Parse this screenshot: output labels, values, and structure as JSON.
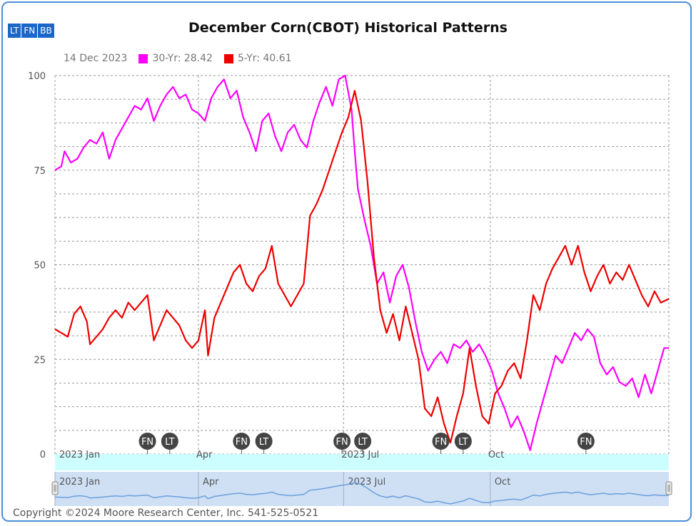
{
  "toolbar": {
    "buttons": [
      "LT",
      "FN",
      "BB"
    ]
  },
  "chart_data": {
    "type": "line",
    "title": "December Corn(CBOT) Historical Patterns",
    "legend": {
      "date": "14 Dec 2023",
      "items": [
        {
          "name": "30-Yr",
          "value": "28.42",
          "color": "#ff00ff"
        },
        {
          "name": "5-Yr",
          "value": "40.61",
          "color": "#ee0000"
        }
      ]
    },
    "ylim": [
      0,
      100
    ],
    "yticks": [
      0,
      25,
      50,
      75,
      100
    ],
    "x_range_days": [
      0,
      350
    ],
    "x_ticks": [
      {
        "label": "2023 Jan",
        "day": 0
      },
      {
        "label": "Apr",
        "day": 90
      },
      {
        "label": "2023 Jul",
        "day": 181
      },
      {
        "label": "Oct",
        "day": 273
      }
    ],
    "markers": [
      {
        "label": "FN",
        "day": 58
      },
      {
        "label": "LT",
        "day": 72
      },
      {
        "label": "FN",
        "day": 117
      },
      {
        "label": "LT",
        "day": 131
      },
      {
        "label": "FN",
        "day": 180
      },
      {
        "label": "LT",
        "day": 193
      },
      {
        "label": "FN",
        "day": 242
      },
      {
        "label": "LT",
        "day": 256
      },
      {
        "label": "FN",
        "day": 333
      }
    ],
    "series": [
      {
        "name": "30-Yr",
        "color": "#ff00ff",
        "points": [
          [
            0,
            75
          ],
          [
            4,
            76
          ],
          [
            6,
            80
          ],
          [
            10,
            77
          ],
          [
            14,
            78
          ],
          [
            18,
            81
          ],
          [
            22,
            83
          ],
          [
            26,
            82
          ],
          [
            30,
            85
          ],
          [
            34,
            78
          ],
          [
            38,
            83
          ],
          [
            42,
            86
          ],
          [
            46,
            89
          ],
          [
            50,
            92
          ],
          [
            54,
            91
          ],
          [
            58,
            94
          ],
          [
            62,
            88
          ],
          [
            66,
            92
          ],
          [
            70,
            95
          ],
          [
            74,
            97
          ],
          [
            78,
            94
          ],
          [
            82,
            95
          ],
          [
            86,
            91
          ],
          [
            90,
            90
          ],
          [
            94,
            88
          ],
          [
            98,
            94
          ],
          [
            102,
            97
          ],
          [
            106,
            99
          ],
          [
            110,
            94
          ],
          [
            114,
            96
          ],
          [
            118,
            89
          ],
          [
            122,
            85
          ],
          [
            126,
            80
          ],
          [
            130,
            88
          ],
          [
            134,
            90
          ],
          [
            138,
            84
          ],
          [
            142,
            80
          ],
          [
            146,
            85
          ],
          [
            150,
            87
          ],
          [
            154,
            83
          ],
          [
            158,
            81
          ],
          [
            162,
            88
          ],
          [
            166,
            93
          ],
          [
            170,
            97
          ],
          [
            174,
            92
          ],
          [
            178,
            99
          ],
          [
            182,
            100
          ],
          [
            186,
            91
          ],
          [
            188,
            80
          ],
          [
            190,
            70
          ],
          [
            194,
            62
          ],
          [
            198,
            55
          ],
          [
            202,
            45
          ],
          [
            206,
            48
          ],
          [
            210,
            40
          ],
          [
            214,
            47
          ],
          [
            218,
            50
          ],
          [
            222,
            44
          ],
          [
            226,
            35
          ],
          [
            230,
            27
          ],
          [
            234,
            22
          ],
          [
            238,
            25
          ],
          [
            242,
            27
          ],
          [
            246,
            24
          ],
          [
            250,
            29
          ],
          [
            254,
            28
          ],
          [
            258,
            30
          ],
          [
            262,
            27
          ],
          [
            266,
            29
          ],
          [
            270,
            26
          ],
          [
            274,
            22
          ],
          [
            278,
            16
          ],
          [
            282,
            12
          ],
          [
            286,
            7
          ],
          [
            290,
            10
          ],
          [
            294,
            6
          ],
          [
            298,
            1
          ],
          [
            302,
            8
          ],
          [
            306,
            14
          ],
          [
            310,
            20
          ],
          [
            314,
            26
          ],
          [
            318,
            24
          ],
          [
            322,
            28
          ],
          [
            326,
            32
          ],
          [
            330,
            30
          ],
          [
            334,
            33
          ],
          [
            338,
            31
          ],
          [
            342,
            24
          ],
          [
            346,
            21
          ],
          [
            350,
            23
          ],
          [
            354,
            19
          ],
          [
            358,
            18
          ],
          [
            362,
            20
          ],
          [
            366,
            15
          ],
          [
            370,
            21
          ],
          [
            374,
            16
          ],
          [
            378,
            22
          ],
          [
            382,
            28
          ],
          [
            385,
            28
          ]
        ]
      },
      {
        "name": "5-Yr",
        "color": "#ee0000",
        "points": [
          [
            0,
            33
          ],
          [
            4,
            32
          ],
          [
            8,
            31
          ],
          [
            12,
            37
          ],
          [
            16,
            39
          ],
          [
            20,
            35
          ],
          [
            22,
            29
          ],
          [
            26,
            31
          ],
          [
            30,
            33
          ],
          [
            34,
            36
          ],
          [
            38,
            38
          ],
          [
            42,
            36
          ],
          [
            46,
            40
          ],
          [
            50,
            38
          ],
          [
            54,
            40
          ],
          [
            58,
            42
          ],
          [
            62,
            30
          ],
          [
            66,
            34
          ],
          [
            70,
            38
          ],
          [
            74,
            36
          ],
          [
            78,
            34
          ],
          [
            82,
            30
          ],
          [
            86,
            28
          ],
          [
            90,
            30
          ],
          [
            94,
            38
          ],
          [
            96,
            26
          ],
          [
            100,
            36
          ],
          [
            104,
            40
          ],
          [
            108,
            44
          ],
          [
            112,
            48
          ],
          [
            116,
            50
          ],
          [
            120,
            45
          ],
          [
            124,
            43
          ],
          [
            128,
            47
          ],
          [
            132,
            49
          ],
          [
            136,
            55
          ],
          [
            140,
            45
          ],
          [
            144,
            42
          ],
          [
            148,
            39
          ],
          [
            152,
            42
          ],
          [
            156,
            45
          ],
          [
            160,
            63
          ],
          [
            164,
            66
          ],
          [
            168,
            70
          ],
          [
            172,
            75
          ],
          [
            176,
            80
          ],
          [
            180,
            85
          ],
          [
            184,
            89
          ],
          [
            188,
            96
          ],
          [
            192,
            88
          ],
          [
            196,
            72
          ],
          [
            200,
            52
          ],
          [
            204,
            38
          ],
          [
            208,
            32
          ],
          [
            212,
            37
          ],
          [
            216,
            30
          ],
          [
            220,
            39
          ],
          [
            224,
            32
          ],
          [
            228,
            25
          ],
          [
            232,
            12
          ],
          [
            236,
            10
          ],
          [
            240,
            15
          ],
          [
            244,
            8
          ],
          [
            248,
            3
          ],
          [
            252,
            10
          ],
          [
            256,
            16
          ],
          [
            260,
            28
          ],
          [
            264,
            18
          ],
          [
            268,
            10
          ],
          [
            272,
            8
          ],
          [
            276,
            16
          ],
          [
            280,
            18
          ],
          [
            284,
            22
          ],
          [
            288,
            24
          ],
          [
            292,
            20
          ],
          [
            296,
            30
          ],
          [
            300,
            42
          ],
          [
            304,
            38
          ],
          [
            308,
            45
          ],
          [
            312,
            49
          ],
          [
            316,
            52
          ],
          [
            320,
            55
          ],
          [
            324,
            50
          ],
          [
            328,
            55
          ],
          [
            332,
            48
          ],
          [
            336,
            43
          ],
          [
            340,
            47
          ],
          [
            344,
            50
          ],
          [
            348,
            45
          ],
          [
            352,
            48
          ],
          [
            356,
            46
          ],
          [
            360,
            50
          ],
          [
            364,
            46
          ],
          [
            368,
            42
          ],
          [
            372,
            39
          ],
          [
            376,
            43
          ],
          [
            380,
            40
          ],
          [
            385,
            41
          ]
        ]
      }
    ]
  },
  "navigator": {
    "labels": [
      "2023 Jan",
      "Apr",
      "2023 Jul",
      "Oct"
    ]
  },
  "footer": {
    "copyright": "Copyright ©2024 Moore Research Center, Inc. 541-525-0521"
  }
}
